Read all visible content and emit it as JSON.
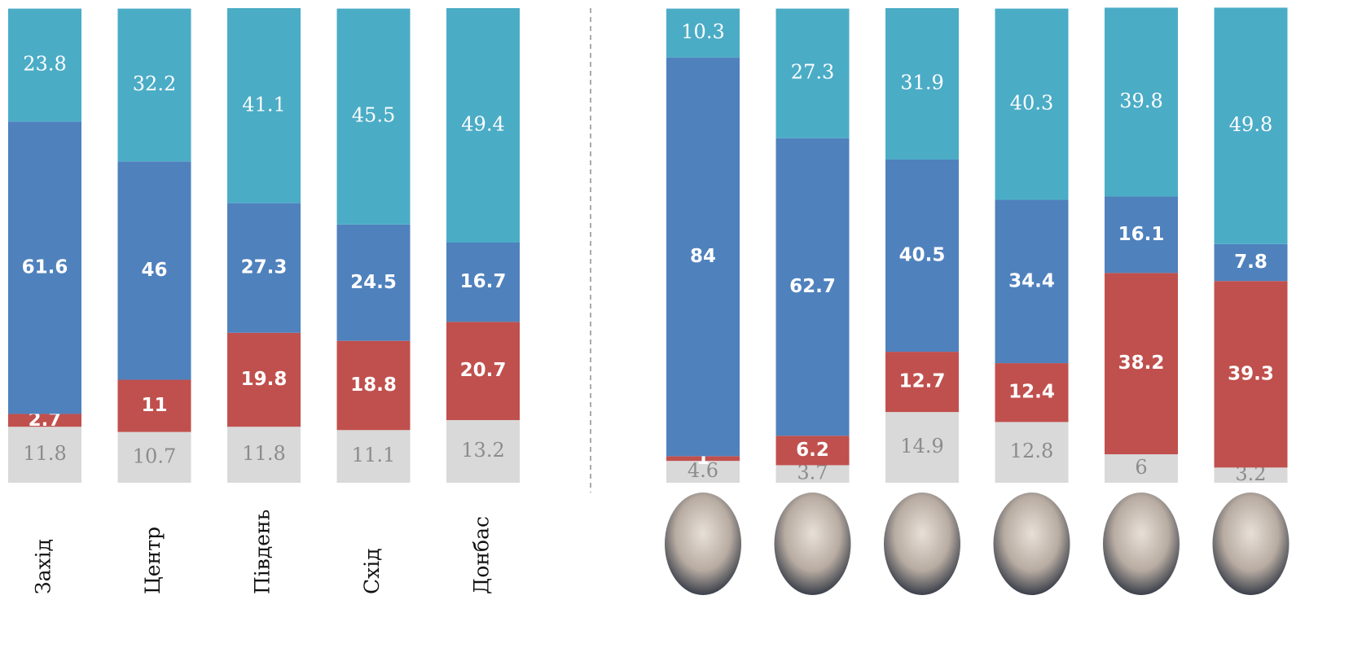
{
  "chart_data": [
    {
      "type": "bar",
      "stacked": true,
      "categories": [
        "Захід",
        "Центр",
        "Південь",
        "Схід",
        "Донбас"
      ],
      "ylim": [
        0,
        100
      ],
      "series": [
        {
          "color": "#d9d9d9",
          "values": [
            11.8,
            10.7,
            11.8,
            11.1,
            13.2
          ]
        },
        {
          "color": "#c0504d",
          "values": [
            2.7,
            11,
            19.8,
            18.8,
            20.7
          ]
        },
        {
          "color": "#4f81bd",
          "values": [
            61.6,
            46,
            27.3,
            24.5,
            16.7
          ]
        },
        {
          "color": "#4bacc6",
          "values": [
            23.8,
            32.2,
            41.1,
            45.5,
            49.4
          ]
        }
      ]
    },
    {
      "type": "bar",
      "stacked": true,
      "categories": [
        null,
        null,
        null,
        null,
        null,
        null
      ],
      "ylim": [
        0,
        100
      ],
      "series": [
        {
          "color": "#d9d9d9",
          "values": [
            4.6,
            3.7,
            14.9,
            12.8,
            6,
            3.2
          ]
        },
        {
          "color": "#c0504d",
          "values": [
            1,
            6.2,
            12.7,
            12.4,
            38.2,
            39.3
          ]
        },
        {
          "color": "#4f81bd",
          "values": [
            84,
            62.7,
            40.5,
            34.4,
            16.1,
            7.8
          ]
        },
        {
          "color": "#4bacc6",
          "values": [
            10.3,
            27.3,
            31.9,
            40.3,
            39.8,
            49.8
          ]
        }
      ]
    }
  ]
}
